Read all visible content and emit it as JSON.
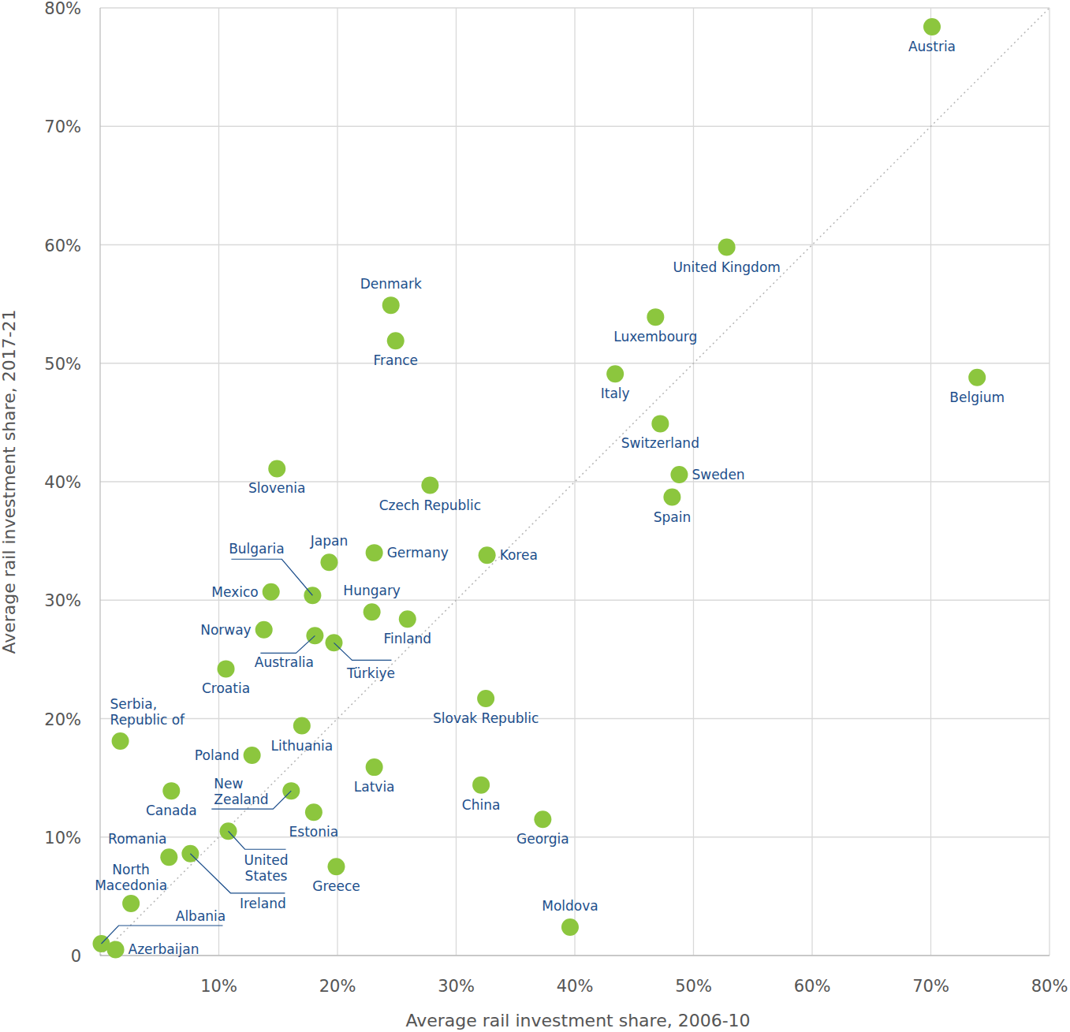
{
  "chart_data": {
    "type": "scatter",
    "x_label": "Average rail investment share, 2006-10",
    "y_label": "Average rail investment share, 2017-21",
    "labels": [
      "Austria",
      "United Kingdom",
      "Denmark",
      "France",
      "Luxembourg",
      "Italy",
      "Belgium",
      "Switzerland",
      "Sweden",
      "Spain",
      "Slovenia",
      "Czech Republic",
      "Japan",
      "Germany",
      "Korea",
      "Bulgaria",
      "Mexico",
      "Hungary",
      "Finland",
      "Norway",
      "Australia",
      "Türkiye",
      "Croatia",
      "Slovak Republic",
      "Serbia, Republic of",
      "Lithuania",
      "Poland",
      "Latvia",
      "China",
      "Canada",
      "New Zealand",
      "Estonia",
      "Georgia",
      "United States",
      "Romania",
      "Ireland",
      "Greece",
      "North Macedonia",
      "Moldova",
      "Albania",
      "Azerbaijan"
    ],
    "x": [
      70.1,
      52.8,
      24.5,
      24.9,
      46.8,
      43.4,
      73.9,
      47.2,
      48.8,
      48.2,
      14.9,
      27.8,
      19.3,
      23.1,
      32.6,
      17.9,
      14.4,
      22.9,
      25.9,
      13.8,
      18.1,
      19.7,
      10.6,
      32.5,
      1.7,
      17.0,
      12.8,
      23.1,
      32.1,
      6.0,
      16.1,
      18.0,
      37.3,
      10.8,
      5.8,
      7.6,
      19.9,
      2.6,
      39.6,
      0.1,
      1.3
    ],
    "values": [
      78.4,
      59.8,
      54.9,
      51.9,
      53.9,
      49.1,
      48.8,
      44.9,
      40.6,
      38.7,
      41.1,
      39.7,
      33.2,
      34.0,
      33.8,
      30.4,
      30.7,
      29.0,
      28.4,
      27.5,
      27.0,
      26.4,
      24.2,
      21.7,
      18.1,
      19.4,
      16.9,
      15.9,
      14.4,
      13.9,
      13.9,
      12.1,
      11.5,
      10.5,
      8.3,
      8.6,
      7.5,
      4.4,
      2.4,
      1.0,
      0.5
    ],
    "color": "#8cc63e",
    "marker": "circle",
    "grid": true,
    "xlim": [
      0,
      80
    ],
    "ylim": [
      0,
      80
    ],
    "xticks": [
      {
        "value": 10,
        "label": "10%"
      },
      {
        "value": 20,
        "label": "20%"
      },
      {
        "value": 30,
        "label": "30%"
      },
      {
        "value": 40,
        "label": "40%"
      },
      {
        "value": 50,
        "label": "50%"
      },
      {
        "value": 60,
        "label": "60%"
      },
      {
        "value": 70,
        "label": "70%"
      },
      {
        "value": 80,
        "label": "80%"
      }
    ],
    "yticks": [
      0,
      {
        "value": 10,
        "label": "10%"
      },
      {
        "value": 20,
        "label": "20%"
      },
      {
        "value": 30,
        "label": "30%"
      },
      {
        "value": 40,
        "label": "40%"
      },
      {
        "value": 50,
        "label": "50%"
      },
      {
        "value": 60,
        "label": "60%"
      },
      {
        "value": 70,
        "label": "70%"
      },
      {
        "value": 80,
        "label": "80%"
      }
    ]
  }
}
